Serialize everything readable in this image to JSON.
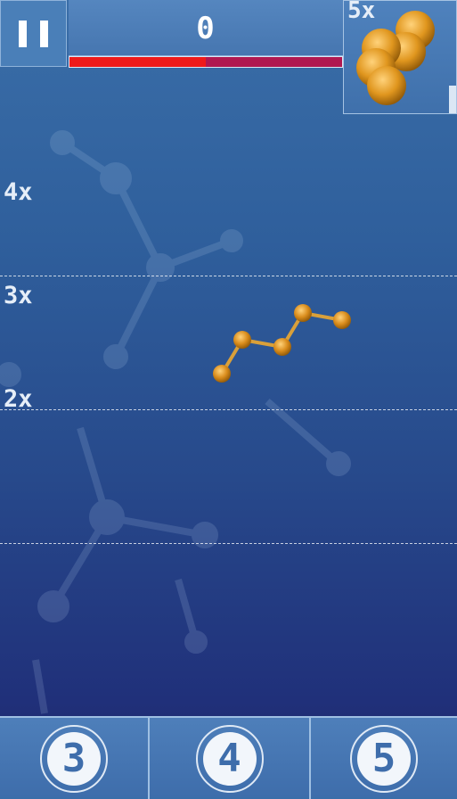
{
  "hud": {
    "score": "0",
    "timer_fraction": 0.5,
    "pause_icon": "pause-icon"
  },
  "next_molecule": {
    "multiplier": "5x",
    "atom_color": "#e0961e"
  },
  "zones": [
    "4x",
    "3x",
    "2x"
  ],
  "atom_buttons": [
    {
      "label": "3"
    },
    {
      "label": "4"
    },
    {
      "label": "5"
    }
  ],
  "colors": {
    "atom": "#d98c1c",
    "timer_remaining": "#ee1a1a",
    "timer_empty": "#b01850"
  }
}
